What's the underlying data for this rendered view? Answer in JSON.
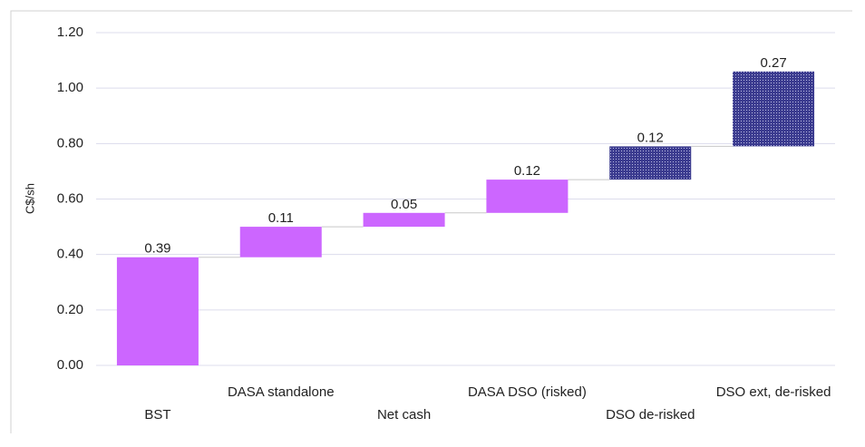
{
  "chart_data": {
    "type": "waterfall",
    "y_label": "C$/sh",
    "categories": [
      "BST",
      "DASA standalone",
      "Net cash",
      "DASA DSO (risked)",
      "DSO de-risked",
      "DSO ext, de-risked"
    ],
    "values": [
      0.39,
      0.11,
      0.05,
      0.12,
      0.12,
      0.27
    ],
    "colors": [
      "#cc66ff",
      "#cc66ff",
      "#cc66ff",
      "#cc66ff",
      "#3b3b8f",
      "#3b3b8f"
    ],
    "patterned": [
      false,
      false,
      false,
      false,
      true,
      true
    ],
    "ylim": [
      0,
      1.2
    ],
    "yticks": [
      {
        "value": 0,
        "label": "0.00"
      },
      {
        "value": 0.2,
        "label": "0.20"
      },
      {
        "value": 0.4,
        "label": "0.40"
      },
      {
        "value": 0.6,
        "label": "0.60"
      },
      {
        "value": 0.8,
        "label": "0.80"
      },
      {
        "value": 1.0,
        "label": "1.00"
      },
      {
        "value": 1.2,
        "label": "1.20"
      }
    ],
    "grid": true
  }
}
